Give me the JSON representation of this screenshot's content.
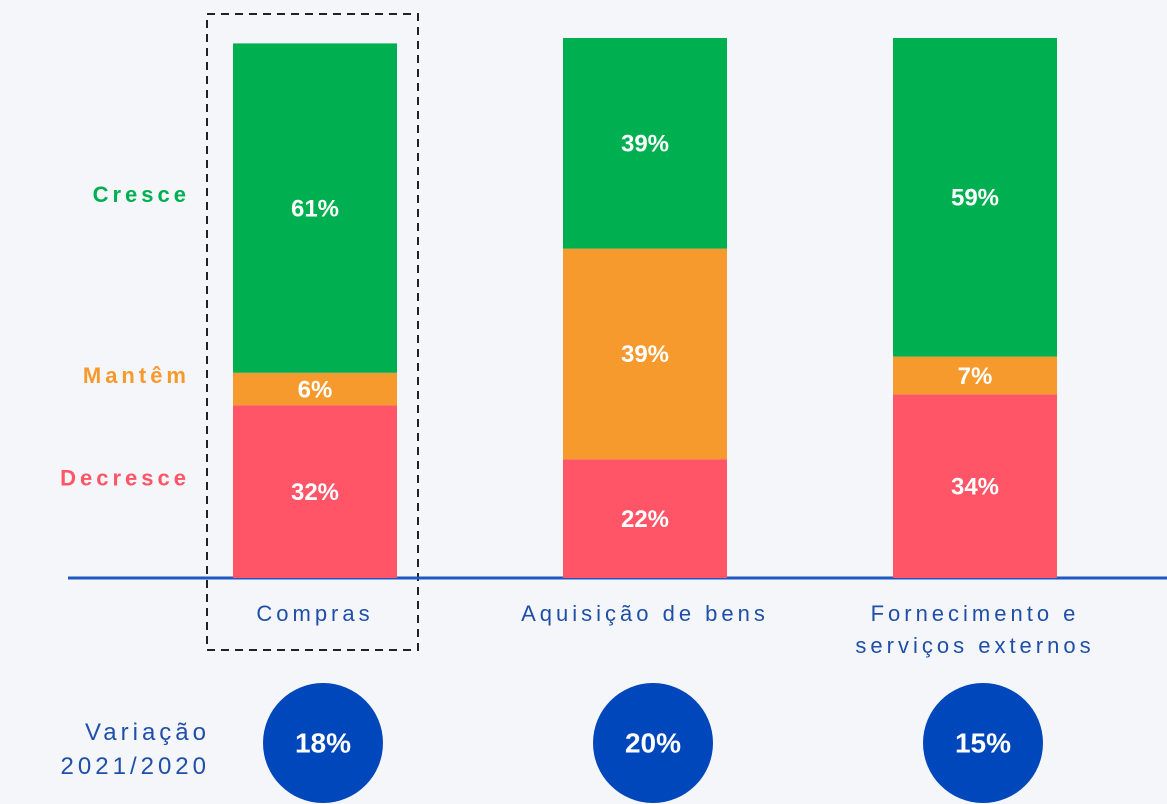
{
  "chart_data": {
    "type": "bar",
    "stacked": true,
    "categories": [
      "Compras",
      "Aquisição de bens",
      "Fornecimento e serviços externos"
    ],
    "series": [
      {
        "name": "Decresce",
        "color": "#ff5567",
        "values": [
          32,
          22,
          34
        ],
        "value_labels": [
          "32%",
          "22%",
          "34%"
        ]
      },
      {
        "name": "Mantêm",
        "color": "#f79a2e",
        "values": [
          6,
          39,
          7
        ],
        "value_labels": [
          "6%",
          "39%",
          "7%"
        ]
      },
      {
        "name": "Cresce",
        "color": "#00b050",
        "values": [
          61,
          39,
          59
        ],
        "value_labels": [
          "61%",
          "39%",
          "59%"
        ]
      }
    ],
    "ylim": [
      0,
      100
    ],
    "variation": {
      "label": "Variação 2021/2020",
      "color": "#0047bb",
      "values": [
        18,
        20,
        15
      ],
      "value_labels": [
        "18%",
        "20%",
        "15%"
      ]
    }
  }
}
